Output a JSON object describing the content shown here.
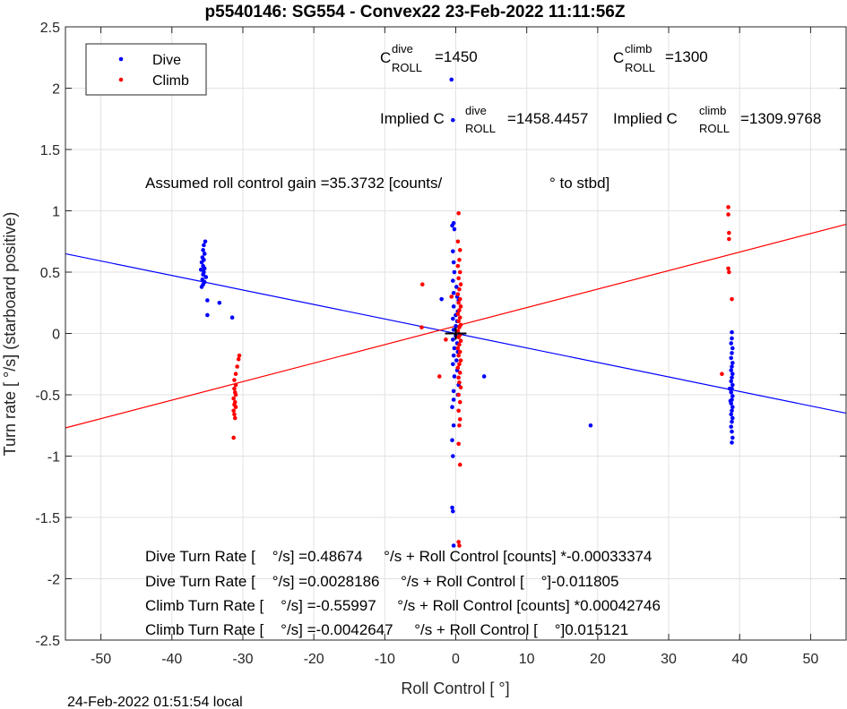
{
  "title": "p5540146: SG554 - Convex22 23-Feb-2022 11:11:56Z",
  "footer": "24-Feb-2022 01:51:54 local",
  "colors": {
    "dive": "#0000ff",
    "climb": "#ff0000",
    "grid": "#e2e2e2",
    "axis": "#262626"
  },
  "annotations": {
    "c_dive_base": "C",
    "c_dive_sup": "dive",
    "c_dive_sub": "ROLL",
    "c_dive_val": "=1450",
    "c_climb_base": "C",
    "c_climb_sup": "climb",
    "c_climb_sub": "ROLL",
    "c_climb_val": "=1300",
    "implied_dive_prefix": "Implied C",
    "implied_dive_sup": "dive",
    "implied_dive_sub": "ROLL",
    "implied_dive_val": "=1458.4457",
    "implied_climb_prefix": "Implied C",
    "implied_climb_sup": "climb",
    "implied_climb_sub": "ROLL",
    "implied_climb_val": "=1309.9768",
    "gain_text": "Assumed roll control gain =35.3732 [counts/",
    "gain_unit": "° to stbd]",
    "eq1": "Dive Turn Rate [    °/s] =0.48674     °/s + Roll Control [counts] *-0.00033374",
    "eq2": "Dive Turn Rate [    °/s] =0.0028186     °/s + Roll Control [    °]-0.011805",
    "eq3": "Climb Turn Rate [    °/s] =-0.55997     °/s + Roll Control [counts] *0.00042746",
    "eq4": "Climb Turn Rate [    °/s] =-0.0042647     °/s + Roll Control [    °]0.015121"
  },
  "chart_data": {
    "type": "scatter",
    "title": "p5540146: SG554 - Convex22 23-Feb-2022 11:11:56Z",
    "xlabel": "Roll Control [   °]",
    "ylabel": "Turn rate [   °/s] (starboard positive)",
    "xlim": [
      -55,
      55
    ],
    "ylim": [
      -2.5,
      2.5
    ],
    "xticks": [
      -50,
      -40,
      -30,
      -20,
      -10,
      0,
      10,
      20,
      30,
      40,
      50
    ],
    "yticks": [
      -2.5,
      -2,
      -1.5,
      -1,
      -0.5,
      0,
      0.5,
      1,
      1.5,
      2,
      2.5
    ],
    "xtick_labels": [
      "-50",
      "-40",
      "-30",
      "-20",
      "-10",
      "0",
      "10",
      "20",
      "30",
      "40",
      "50"
    ],
    "ytick_labels": [
      "-2.5",
      "-2",
      "-1.5",
      "-1",
      "-0.5",
      "0",
      "0.5",
      "1",
      "1.5",
      "2",
      "2.5"
    ],
    "grid": true,
    "legend_position": "top-left",
    "series": [
      {
        "name": "Dive",
        "color": "#0000ff",
        "points": [
          [
            -35.3,
            0.75
          ],
          [
            -35.5,
            0.72
          ],
          [
            -35.6,
            0.68
          ],
          [
            -35.4,
            0.65
          ],
          [
            -35.7,
            0.62
          ],
          [
            -35.5,
            0.6
          ],
          [
            -35.8,
            0.58
          ],
          [
            -35.6,
            0.55
          ],
          [
            -35.4,
            0.53
          ],
          [
            -35.9,
            0.52
          ],
          [
            -35.5,
            0.5
          ],
          [
            -35.6,
            0.48
          ],
          [
            -35.2,
            0.46
          ],
          [
            -35.7,
            0.44
          ],
          [
            -35.4,
            0.42
          ],
          [
            -35.6,
            0.4
          ],
          [
            -35.8,
            0.38
          ],
          [
            -35.0,
            0.27
          ],
          [
            -33.3,
            0.25
          ],
          [
            -31.5,
            0.13
          ],
          [
            -35.0,
            0.15
          ],
          [
            -0.6,
            2.07
          ],
          [
            -0.4,
            1.74
          ],
          [
            -0.3,
            0.9
          ],
          [
            -0.5,
            0.88
          ],
          [
            -0.2,
            0.85
          ],
          [
            -0.4,
            0.67
          ],
          [
            -0.3,
            0.58
          ],
          [
            -0.2,
            0.5
          ],
          [
            -0.4,
            0.43
          ],
          [
            0.1,
            0.38
          ],
          [
            -0.3,
            0.33
          ],
          [
            0.2,
            0.3
          ],
          [
            -2.0,
            0.28
          ],
          [
            0.4,
            0.27
          ],
          [
            -0.3,
            0.22
          ],
          [
            0.3,
            0.18
          ],
          [
            0.0,
            0.15
          ],
          [
            -0.4,
            0.12
          ],
          [
            0.2,
            0.1
          ],
          [
            0.0,
            0.06
          ],
          [
            -0.3,
            0.03
          ],
          [
            0.3,
            0.01
          ],
          [
            0.0,
            -0.02
          ],
          [
            -0.4,
            -0.05
          ],
          [
            0.2,
            -0.08
          ],
          [
            -0.2,
            -0.12
          ],
          [
            0.3,
            -0.15
          ],
          [
            -0.3,
            -0.18
          ],
          [
            0.1,
            -0.22
          ],
          [
            -0.4,
            -0.25
          ],
          [
            0.2,
            -0.3
          ],
          [
            -0.2,
            -0.35
          ],
          [
            0.4,
            -0.42
          ],
          [
            -0.3,
            -0.47
          ],
          [
            0.3,
            -0.5
          ],
          [
            -0.3,
            -0.54
          ],
          [
            -0.5,
            -0.6
          ],
          [
            -0.3,
            -0.75
          ],
          [
            -0.5,
            -0.87
          ],
          [
            -0.4,
            -1.0
          ],
          [
            -0.5,
            -1.42
          ],
          [
            -0.4,
            -1.45
          ],
          [
            -0.3,
            -1.73
          ],
          [
            4.0,
            -0.35
          ],
          [
            19.0,
            -0.75
          ],
          [
            38.9,
            0.01
          ],
          [
            38.9,
            -0.04
          ],
          [
            38.8,
            -0.08
          ],
          [
            39.0,
            -0.12
          ],
          [
            38.9,
            -0.16
          ],
          [
            38.8,
            -0.2
          ],
          [
            39.0,
            -0.24
          ],
          [
            38.9,
            -0.27
          ],
          [
            38.8,
            -0.3
          ],
          [
            39.0,
            -0.33
          ],
          [
            38.9,
            -0.36
          ],
          [
            38.8,
            -0.39
          ],
          [
            39.0,
            -0.42
          ],
          [
            38.9,
            -0.45
          ],
          [
            38.8,
            -0.48
          ],
          [
            39.0,
            -0.51
          ],
          [
            38.9,
            -0.54
          ],
          [
            38.8,
            -0.57
          ],
          [
            39.0,
            -0.6
          ],
          [
            38.9,
            -0.63
          ],
          [
            38.8,
            -0.66
          ],
          [
            39.0,
            -0.69
          ],
          [
            38.9,
            -0.72
          ],
          [
            38.8,
            -0.76
          ],
          [
            38.9,
            -0.8
          ],
          [
            39.0,
            -0.85
          ],
          [
            38.9,
            -0.89
          ],
          [
            38.6,
            -0.45
          ],
          [
            38.7,
            -0.55
          ]
        ],
        "fit_line": [
          [
            -55,
            0.65
          ],
          [
            55,
            -0.65
          ]
        ]
      },
      {
        "name": "Climb",
        "color": "#ff0000",
        "points": [
          [
            -30.5,
            -0.18
          ],
          [
            -30.6,
            -0.21
          ],
          [
            -30.8,
            -0.27
          ],
          [
            -31.0,
            -0.33
          ],
          [
            -31.2,
            -0.38
          ],
          [
            -31.0,
            -0.42
          ],
          [
            -31.2,
            -0.45
          ],
          [
            -31.1,
            -0.48
          ],
          [
            -31.0,
            -0.5
          ],
          [
            -31.3,
            -0.53
          ],
          [
            -31.1,
            -0.56
          ],
          [
            -31.2,
            -0.58
          ],
          [
            -31.0,
            -0.6
          ],
          [
            -31.3,
            -0.63
          ],
          [
            -31.2,
            -0.66
          ],
          [
            -31.1,
            -0.69
          ],
          [
            -31.3,
            -0.85
          ],
          [
            0.4,
            0.98
          ],
          [
            0.3,
            0.75
          ],
          [
            0.6,
            0.68
          ],
          [
            0.5,
            0.6
          ],
          [
            0.3,
            0.55
          ],
          [
            0.6,
            0.5
          ],
          [
            0.4,
            0.45
          ],
          [
            0.7,
            0.4
          ],
          [
            0.5,
            0.36
          ],
          [
            0.3,
            0.32
          ],
          [
            0.6,
            0.28
          ],
          [
            0.4,
            0.25
          ],
          [
            0.7,
            0.22
          ],
          [
            0.5,
            0.19
          ],
          [
            0.3,
            0.16
          ],
          [
            0.6,
            0.13
          ],
          [
            0.4,
            0.1
          ],
          [
            0.7,
            0.07
          ],
          [
            0.5,
            0.05
          ],
          [
            0.3,
            0.02
          ],
          [
            0.6,
            -0.01
          ],
          [
            0.4,
            -0.03
          ],
          [
            0.7,
            -0.06
          ],
          [
            0.5,
            -0.09
          ],
          [
            0.3,
            -0.12
          ],
          [
            0.6,
            -0.15
          ],
          [
            0.4,
            -0.18
          ],
          [
            0.7,
            -0.22
          ],
          [
            0.5,
            -0.25
          ],
          [
            0.3,
            -0.28
          ],
          [
            0.6,
            -0.32
          ],
          [
            0.4,
            -0.36
          ],
          [
            0.5,
            -0.4
          ],
          [
            0.7,
            -0.44
          ],
          [
            0.4,
            -0.5
          ],
          [
            0.6,
            -0.56
          ],
          [
            0.4,
            -0.63
          ],
          [
            0.6,
            -0.7
          ],
          [
            0.5,
            -0.75
          ],
          [
            0.4,
            -0.9
          ],
          [
            0.6,
            -1.07
          ],
          [
            0.4,
            -1.7
          ],
          [
            0.5,
            -1.73
          ],
          [
            -4.7,
            0.4
          ],
          [
            -4.8,
            0.05
          ],
          [
            -2.3,
            -0.35
          ],
          [
            -0.6,
            0.3
          ],
          [
            -1.4,
            -0.05
          ],
          [
            38.4,
            1.03
          ],
          [
            38.4,
            0.97
          ],
          [
            38.5,
            0.82
          ],
          [
            38.5,
            0.77
          ],
          [
            38.4,
            0.53
          ],
          [
            38.5,
            0.5
          ],
          [
            38.9,
            0.28
          ],
          [
            37.5,
            -0.33
          ]
        ],
        "fit_line": [
          [
            -55,
            -0.77
          ],
          [
            55,
            0.89
          ]
        ]
      }
    ]
  }
}
